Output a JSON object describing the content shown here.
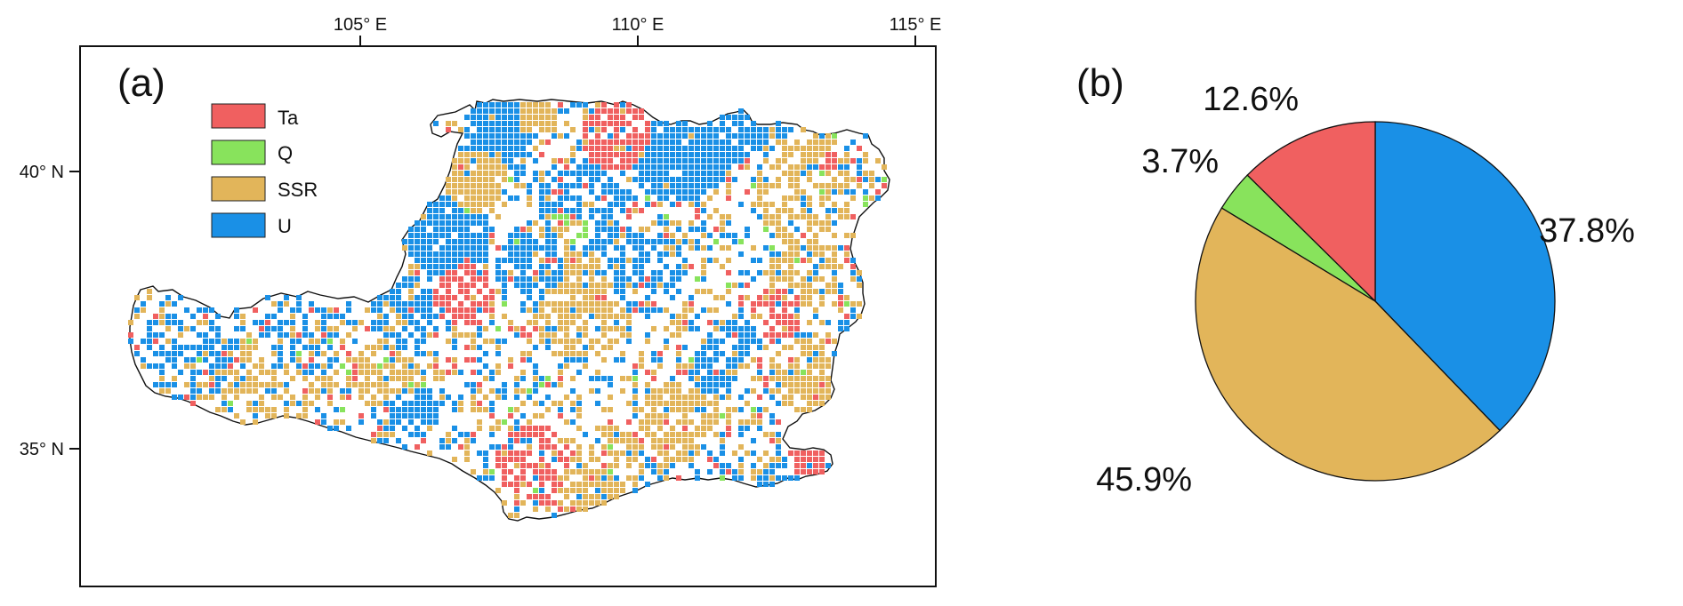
{
  "panel_a": {
    "label": "(a)",
    "lon_ticks": [
      "105° E",
      "110° E",
      "115° E"
    ],
    "lat_ticks": [
      "40° N",
      "35° N"
    ],
    "legend": [
      {
        "key": "Ta",
        "color": "#f06060"
      },
      {
        "key": "Q",
        "color": "#88e35c"
      },
      {
        "key": "SSR",
        "color": "#e2b55a"
      },
      {
        "key": "U",
        "color": "#1a90e6"
      }
    ]
  },
  "panel_b": {
    "label": "(b)"
  },
  "chart_data": {
    "type": "pie",
    "slices": [
      {
        "category": "U",
        "value": 37.8,
        "label": "37.8%",
        "color": "#1a90e6"
      },
      {
        "category": "SSR",
        "value": 45.9,
        "label": "45.9%",
        "color": "#e2b55a"
      },
      {
        "category": "Q",
        "value": 3.7,
        "label": "3.7%",
        "color": "#88e35c"
      },
      {
        "category": "Ta",
        "value": 12.6,
        "label": "12.6%",
        "color": "#f06060"
      }
    ],
    "start_angle": "12 o'clock",
    "direction": "clockwise"
  }
}
